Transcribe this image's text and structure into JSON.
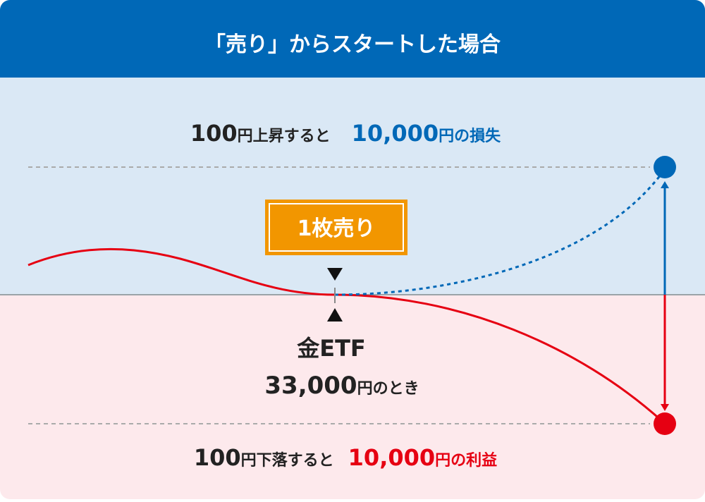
{
  "title": "「売り」からスタートした場合",
  "loss": {
    "move": "100",
    "move_text": "円上昇すると",
    "amount": "10,000",
    "amount_text": "円の損失"
  },
  "badge": "1枚売り",
  "start": {
    "label": "金ETF",
    "price": "33,000",
    "price_text": "円のとき"
  },
  "gain": {
    "move": "100",
    "move_text": "円下落すると",
    "amount": "10,000",
    "amount_text": "円の利益"
  }
}
